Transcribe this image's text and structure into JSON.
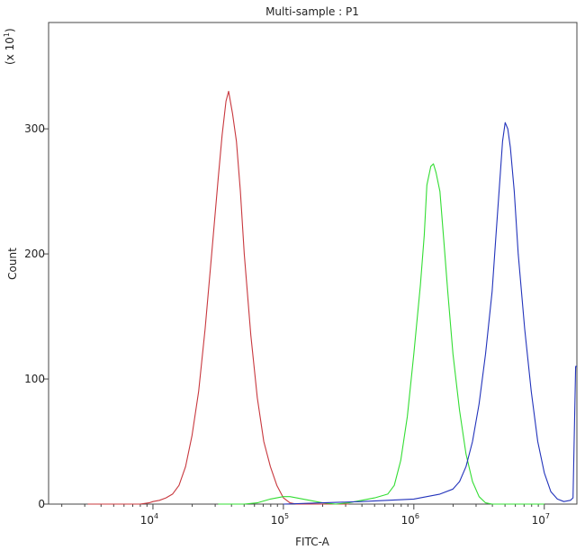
{
  "chart_data": {
    "type": "line",
    "title": "Multi-sample : P1",
    "xlabel": "FITC-A",
    "ylabel": "Count",
    "y_multiplier": {
      "prefix": "(x 10",
      "exponent": "1",
      "suffix": ")"
    },
    "x_scale": "log",
    "xlim_log10": [
      3.2,
      7.25
    ],
    "ylim": [
      0,
      385
    ],
    "x_ticks": [
      {
        "value": 10000,
        "base": "10",
        "exp": "4"
      },
      {
        "value": 100000,
        "base": "10",
        "exp": "5"
      },
      {
        "value": 1000000,
        "base": "10",
        "exp": "6"
      },
      {
        "value": 10000000,
        "base": "10",
        "exp": "7"
      }
    ],
    "y_ticks": [
      {
        "value": 0,
        "label": "0"
      },
      {
        "value": 100,
        "label": "100"
      },
      {
        "value": 200,
        "label": "200"
      },
      {
        "value": 300,
        "label": "300"
      }
    ],
    "grid": false,
    "legend": "none",
    "series": [
      {
        "color": "#c8383e",
        "points": [
          [
            3.5,
            0
          ],
          [
            3.9,
            0
          ],
          [
            3.97,
            1
          ],
          [
            4.0,
            2
          ],
          [
            4.05,
            3
          ],
          [
            4.1,
            5
          ],
          [
            4.15,
            8
          ],
          [
            4.2,
            15
          ],
          [
            4.25,
            30
          ],
          [
            4.3,
            55
          ],
          [
            4.35,
            90
          ],
          [
            4.4,
            140
          ],
          [
            4.45,
            200
          ],
          [
            4.5,
            260
          ],
          [
            4.53,
            295
          ],
          [
            4.56,
            322
          ],
          [
            4.58,
            330
          ],
          [
            4.61,
            312
          ],
          [
            4.64,
            290
          ],
          [
            4.67,
            250
          ],
          [
            4.7,
            200
          ],
          [
            4.75,
            135
          ],
          [
            4.8,
            85
          ],
          [
            4.85,
            50
          ],
          [
            4.9,
            30
          ],
          [
            4.95,
            15
          ],
          [
            5.0,
            5
          ],
          [
            5.05,
            1
          ],
          [
            5.1,
            0
          ],
          [
            5.5,
            0
          ]
        ]
      },
      {
        "color": "#33dd33",
        "points": [
          [
            4.5,
            0
          ],
          [
            4.7,
            0
          ],
          [
            4.8,
            1
          ],
          [
            4.9,
            4
          ],
          [
            5.0,
            6
          ],
          [
            5.05,
            6
          ],
          [
            5.1,
            5
          ],
          [
            5.2,
            3
          ],
          [
            5.3,
            1
          ],
          [
            5.4,
            0
          ],
          [
            5.5,
            1
          ],
          [
            5.6,
            3
          ],
          [
            5.7,
            5
          ],
          [
            5.8,
            8
          ],
          [
            5.85,
            15
          ],
          [
            5.9,
            35
          ],
          [
            5.95,
            70
          ],
          [
            6.0,
            120
          ],
          [
            6.05,
            175
          ],
          [
            6.08,
            215
          ],
          [
            6.1,
            255
          ],
          [
            6.13,
            270
          ],
          [
            6.15,
            272
          ],
          [
            6.17,
            265
          ],
          [
            6.2,
            250
          ],
          [
            6.23,
            210
          ],
          [
            6.26,
            170
          ],
          [
            6.3,
            120
          ],
          [
            6.35,
            75
          ],
          [
            6.4,
            40
          ],
          [
            6.45,
            18
          ],
          [
            6.5,
            6
          ],
          [
            6.55,
            1
          ],
          [
            6.6,
            0
          ],
          [
            7.0,
            0
          ]
        ]
      },
      {
        "color": "#2233bb",
        "points": [
          [
            5.0,
            0
          ],
          [
            5.3,
            1
          ],
          [
            5.6,
            2
          ],
          [
            5.8,
            3
          ],
          [
            6.0,
            4
          ],
          [
            6.1,
            6
          ],
          [
            6.2,
            8
          ],
          [
            6.3,
            12
          ],
          [
            6.35,
            18
          ],
          [
            6.4,
            30
          ],
          [
            6.45,
            50
          ],
          [
            6.5,
            80
          ],
          [
            6.55,
            120
          ],
          [
            6.6,
            170
          ],
          [
            6.63,
            215
          ],
          [
            6.66,
            260
          ],
          [
            6.68,
            290
          ],
          [
            6.7,
            305
          ],
          [
            6.72,
            300
          ],
          [
            6.74,
            285
          ],
          [
            6.77,
            250
          ],
          [
            6.8,
            200
          ],
          [
            6.85,
            140
          ],
          [
            6.9,
            90
          ],
          [
            6.95,
            50
          ],
          [
            7.0,
            25
          ],
          [
            7.05,
            10
          ],
          [
            7.1,
            4
          ],
          [
            7.15,
            2
          ],
          [
            7.2,
            3
          ],
          [
            7.22,
            5
          ],
          [
            7.24,
            110
          ],
          [
            7.25,
            110
          ]
        ]
      }
    ]
  }
}
